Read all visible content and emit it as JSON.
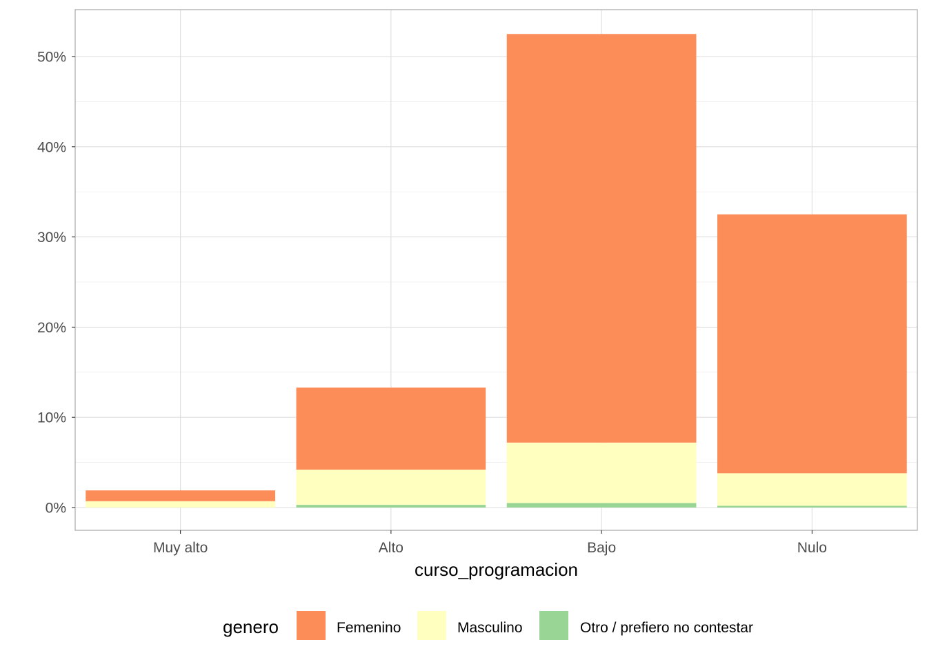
{
  "chart_data": {
    "type": "bar",
    "stacked": true,
    "categories": [
      "Muy alto",
      "Alto",
      "Bajo",
      "Nulo"
    ],
    "series": [
      {
        "name": "Otro / prefiero no contestar",
        "color": "#99d594",
        "values": [
          0.0,
          0.3,
          0.5,
          0.2
        ]
      },
      {
        "name": "Masculino",
        "color": "#ffffbf",
        "values": [
          0.7,
          3.9,
          6.7,
          3.6
        ]
      },
      {
        "name": "Femenino",
        "color": "#fc8d59",
        "values": [
          1.2,
          9.1,
          45.3,
          28.7
        ]
      }
    ],
    "xlabel": "curso_programacion",
    "ylabel": "",
    "ylim": [
      0,
      55
    ],
    "yticks": [
      0,
      10,
      20,
      30,
      40,
      50
    ],
    "ytick_labels": [
      "0%",
      "10%",
      "20%",
      "30%",
      "40%",
      "50%"
    ],
    "grid": true,
    "legend": {
      "title": "genero",
      "position": "bottom",
      "entries": [
        {
          "label": "Femenino",
          "color": "#fc8d59"
        },
        {
          "label": "Masculino",
          "color": "#ffffbf"
        },
        {
          "label": "Otro / prefiero no contestar",
          "color": "#99d594"
        }
      ]
    }
  }
}
